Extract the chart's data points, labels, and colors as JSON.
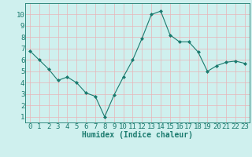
{
  "x": [
    0,
    1,
    2,
    3,
    4,
    5,
    6,
    7,
    8,
    9,
    10,
    11,
    12,
    13,
    14,
    15,
    16,
    17,
    18,
    19,
    20,
    21,
    22,
    23
  ],
  "y": [
    6.8,
    6.0,
    5.2,
    4.2,
    4.5,
    4.0,
    3.1,
    2.8,
    1.0,
    2.9,
    4.5,
    6.0,
    7.9,
    10.0,
    10.3,
    8.2,
    7.6,
    7.6,
    6.7,
    5.0,
    5.5,
    5.8,
    5.9,
    5.7
  ],
  "line_color": "#1a7a6e",
  "marker_color": "#1a7a6e",
  "bg_color": "#cff0ee",
  "grid_color": "#e8b4b8",
  "axis_color": "#1a7a6e",
  "xlabel": "Humidex (Indice chaleur)",
  "xlim": [
    -0.5,
    23.5
  ],
  "ylim": [
    0.5,
    11
  ],
  "yticks": [
    1,
    2,
    3,
    4,
    5,
    6,
    7,
    8,
    9,
    10
  ],
  "xticks": [
    0,
    1,
    2,
    3,
    4,
    5,
    6,
    7,
    8,
    9,
    10,
    11,
    12,
    13,
    14,
    15,
    16,
    17,
    18,
    19,
    20,
    21,
    22,
    23
  ],
  "xlabel_fontsize": 7,
  "tick_fontsize": 6.5
}
